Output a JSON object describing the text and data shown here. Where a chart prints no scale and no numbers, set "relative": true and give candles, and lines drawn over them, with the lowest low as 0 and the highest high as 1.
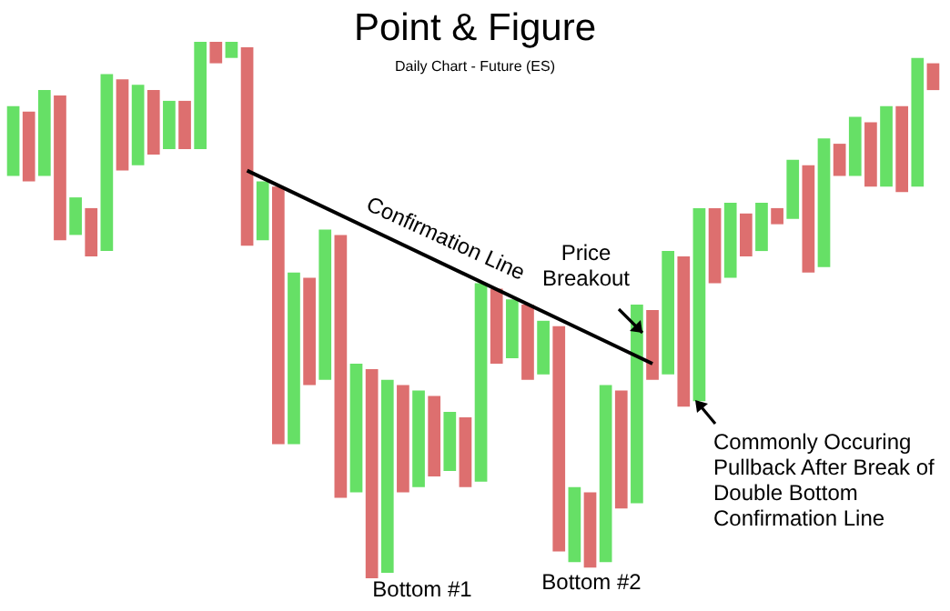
{
  "chart_data": {
    "type": "candlestick",
    "title": "Point & Figure",
    "subtitle": "Daily Chart - Future (ES)",
    "relative": true,
    "categories": [
      null,
      null,
      null,
      null,
      null,
      null,
      null,
      null,
      null,
      null,
      null,
      null,
      null,
      null,
      null,
      null,
      null,
      null,
      null,
      null,
      null,
      null,
      null,
      null,
      null,
      null,
      null,
      null,
      null,
      null,
      null,
      null,
      null,
      null,
      null,
      null,
      null,
      null,
      null,
      null,
      null,
      null,
      null,
      null,
      null,
      null,
      null,
      null,
      null,
      null,
      null,
      null,
      null,
      null,
      null,
      null,
      null,
      null,
      null,
      null
    ],
    "ohlc": [
      [
        0.75,
        0.88,
        0.75,
        0.88
      ],
      [
        0.87,
        0.87,
        0.74,
        0.74
      ],
      [
        0.75,
        0.91,
        0.75,
        0.91
      ],
      [
        0.9,
        0.9,
        0.63,
        0.63
      ],
      [
        0.64,
        0.71,
        0.64,
        0.71
      ],
      [
        0.69,
        0.69,
        0.6,
        0.6
      ],
      [
        0.61,
        0.94,
        0.61,
        0.94
      ],
      [
        0.93,
        0.93,
        0.76,
        0.76
      ],
      [
        0.77,
        0.92,
        0.77,
        0.92
      ],
      [
        0.91,
        0.91,
        0.79,
        0.79
      ],
      [
        0.8,
        0.89,
        0.8,
        0.89
      ],
      [
        0.89,
        0.89,
        0.8,
        0.8
      ],
      [
        0.8,
        1,
        0.8,
        1
      ],
      [
        1,
        1,
        0.96,
        0.96
      ],
      [
        0.97,
        1,
        0.97,
        1
      ],
      [
        0.99,
        0.99,
        0.62,
        0.62
      ],
      [
        0.63,
        0.74,
        0.63,
        0.74
      ],
      [
        0.73,
        0.73,
        0.25,
        0.25
      ],
      [
        0.25,
        0.57,
        0.25,
        0.57
      ],
      [
        0.56,
        0.56,
        0.36,
        0.36
      ],
      [
        0.37,
        0.65,
        0.37,
        0.65
      ],
      [
        0.64,
        0.64,
        0.15,
        0.15
      ],
      [
        0.16,
        0.4,
        0.16,
        0.4
      ],
      [
        0.39,
        0.39,
        0,
        0
      ],
      [
        0.01,
        0.37,
        0.01,
        0.37
      ],
      [
        0.36,
        0.36,
        0.16,
        0.16
      ],
      [
        0.17,
        0.35,
        0.17,
        0.35
      ],
      [
        0.34,
        0.34,
        0.19,
        0.19
      ],
      [
        0.2,
        0.31,
        0.2,
        0.31
      ],
      [
        0.3,
        0.3,
        0.17,
        0.17
      ],
      [
        0.18,
        0.55,
        0.18,
        0.55
      ],
      [
        0.54,
        0.54,
        0.4,
        0.4
      ],
      [
        0.41,
        0.52,
        0.41,
        0.52
      ],
      [
        0.51,
        0.51,
        0.37,
        0.37
      ],
      [
        0.38,
        0.48,
        0.38,
        0.48
      ],
      [
        0.47,
        0.47,
        0.05,
        0.05
      ],
      [
        0.03,
        0.17,
        0.03,
        0.17
      ],
      [
        0.16,
        0.16,
        0.02,
        0.02
      ],
      [
        0.03,
        0.36,
        0.03,
        0.36
      ],
      [
        0.35,
        0.35,
        0.13,
        0.13
      ],
      [
        0.14,
        0.51,
        0.14,
        0.51
      ],
      [
        0.5,
        0.5,
        0.37,
        0.37
      ],
      [
        0.38,
        0.61,
        0.38,
        0.61
      ],
      [
        0.6,
        0.6,
        0.32,
        0.32
      ],
      [
        0.33,
        0.69,
        0.33,
        0.69
      ],
      [
        0.69,
        0.69,
        0.55,
        0.55
      ],
      [
        0.56,
        0.7,
        0.56,
        0.7
      ],
      [
        0.68,
        0.68,
        0.6,
        0.6
      ],
      [
        0.61,
        0.7,
        0.61,
        0.7
      ],
      [
        0.69,
        0.69,
        0.66,
        0.66
      ],
      [
        0.67,
        0.78,
        0.67,
        0.78
      ],
      [
        0.77,
        0.77,
        0.57,
        0.57
      ],
      [
        0.58,
        0.82,
        0.58,
        0.82
      ],
      [
        0.81,
        0.81,
        0.75,
        0.75
      ],
      [
        0.75,
        0.86,
        0.75,
        0.86
      ],
      [
        0.85,
        0.85,
        0.73,
        0.73
      ],
      [
        0.73,
        0.88,
        0.73,
        0.88
      ],
      [
        0.88,
        0.88,
        0.72,
        0.72
      ],
      [
        0.73,
        0.97,
        0.73,
        0.97
      ],
      [
        0.96,
        0.96,
        0.91,
        0.91
      ]
    ],
    "colors": [
      "#66e066",
      "#dd6f6f",
      "#66e066",
      "#dd6f6f",
      "#66e066",
      "#dd6f6f",
      "#66e066",
      "#dd6f6f",
      "#66e066",
      "#dd6f6f",
      "#66e066",
      "#dd6f6f",
      "#66e066",
      "#dd6f6f",
      "#66e066",
      "#dd6f6f",
      "#66e066",
      "#dd6f6f",
      "#66e066",
      "#dd6f6f",
      "#66e066",
      "#dd6f6f",
      "#66e066",
      "#dd6f6f",
      "#66e066",
      "#dd6f6f",
      "#66e066",
      "#dd6f6f",
      "#66e066",
      "#dd6f6f",
      "#66e066",
      "#dd6f6f",
      "#66e066",
      "#dd6f6f",
      "#66e066",
      "#dd6f6f",
      "#66e066",
      "#dd6f6f",
      "#66e066",
      "#dd6f6f",
      "#66e066",
      "#dd6f6f",
      "#66e066",
      "#dd6f6f",
      "#66e066",
      "#dd6f6f",
      "#66e066",
      "#dd6f6f",
      "#66e066",
      "#dd6f6f",
      "#66e066",
      "#dd6f6f",
      "#66e066",
      "#dd6f6f",
      "#66e066",
      "#dd6f6f",
      "#66e066",
      "#dd6f6f",
      "#66e066",
      "#dd6f6f"
    ],
    "series": [
      {
        "type": "line",
        "color": "#000000",
        "values": [
          null,
          null,
          null,
          null,
          null,
          null,
          null,
          null,
          null,
          null,
          null,
          null,
          null,
          null,
          null,
          0.76,
          null,
          null,
          null,
          null,
          null,
          null,
          null,
          null,
          null,
          null,
          null,
          null,
          null,
          null,
          null,
          null,
          null,
          null,
          null,
          null,
          null,
          null,
          null,
          null,
          null,
          0.4,
          null,
          null,
          null,
          null,
          null,
          null,
          null,
          null,
          null,
          null,
          null,
          null,
          null,
          null,
          null,
          null,
          null,
          null
        ]
      }
    ],
    "annotations": [
      "Confirmation Line",
      "Price Breakout",
      "Commonly Occuring Pullback After Break of Double Bottom Confirmation Line",
      "Bottom #1",
      "Bottom #2"
    ]
  }
}
